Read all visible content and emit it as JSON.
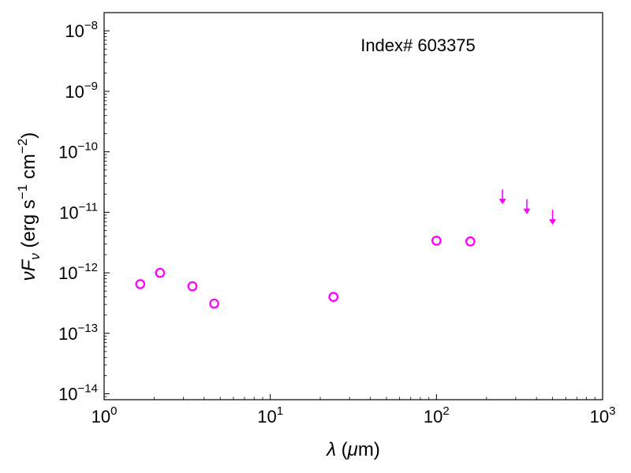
{
  "chart_data": {
    "type": "scatter",
    "title": "",
    "annotation": "Index# 603375",
    "xlabel": {
      "symbol": "λ",
      "unit_open": " (",
      "unit_mu": "μ",
      "unit_rest": "m)"
    },
    "ylabel": {
      "nu": "ν",
      "F": "F",
      "sub": "ν",
      "unit_a": " (erg s",
      "exp1": "−1",
      "unit_b": " cm",
      "exp2": "−2",
      "unit_c": ")"
    },
    "x_scale": "log",
    "y_scale": "log",
    "xlim": [
      1,
      1000
    ],
    "ylim": [
      8e-15,
      2e-08
    ],
    "grid": false,
    "x_ticks": [
      {
        "base": "10",
        "exp": "0",
        "value": 1
      },
      {
        "base": "10",
        "exp": "1",
        "value": 10
      },
      {
        "base": "10",
        "exp": "2",
        "value": 100
      },
      {
        "base": "10",
        "exp": "3",
        "value": 1000
      }
    ],
    "y_ticks": [
      {
        "base": "10",
        "exp": "−14",
        "value": 1e-14
      },
      {
        "base": "10",
        "exp": "−13",
        "value": 1e-13
      },
      {
        "base": "10",
        "exp": "−12",
        "value": 1e-12
      },
      {
        "base": "10",
        "exp": "−11",
        "value": 1e-11
      },
      {
        "base": "10",
        "exp": "−10",
        "value": 1e-10
      },
      {
        "base": "10",
        "exp": "−9",
        "value": 1e-09
      },
      {
        "base": "10",
        "exp": "−8",
        "value": 1e-08
      }
    ],
    "series": [
      {
        "marker": "open-circle",
        "color": "#ff00ff",
        "points": [
          {
            "x": 1.65,
            "y": 6.5e-13
          },
          {
            "x": 2.17,
            "y": 1e-12
          },
          {
            "x": 3.4,
            "y": 6e-13
          },
          {
            "x": 4.6,
            "y": 3.1e-13
          },
          {
            "x": 24,
            "y": 4e-13
          },
          {
            "x": 100,
            "y": 3.4e-12
          },
          {
            "x": 160,
            "y": 3.3e-12
          }
        ]
      },
      {
        "marker": "upper-limit-arrow",
        "color": "#ff00ff",
        "points": [
          {
            "x": 250,
            "y": 2.4e-11
          },
          {
            "x": 350,
            "y": 1.65e-11
          },
          {
            "x": 500,
            "y": 1.1e-11
          }
        ]
      }
    ]
  }
}
